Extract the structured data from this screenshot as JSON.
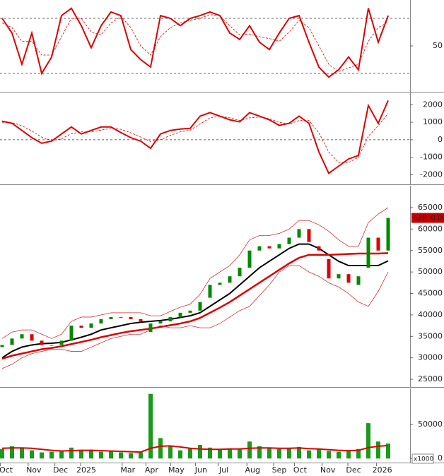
{
  "chart_data": [
    {
      "type": "line",
      "x": [
        0,
        1,
        2,
        3,
        4,
        5,
        6,
        7,
        8,
        9,
        10,
        11,
        12,
        13,
        14,
        15,
        16,
        17,
        18,
        19,
        20,
        21,
        22,
        23,
        24,
        25,
        26,
        27,
        28,
        29,
        30,
        31,
        32,
        33,
        34,
        35,
        36,
        37,
        38,
        39
      ],
      "ylim": [
        0,
        100
      ],
      "yticks": [
        50
      ],
      "levels": [
        20,
        80
      ],
      "series": [
        {
          "color": "#dd0000",
          "width": 2,
          "dash": false,
          "values": [
            80,
            64,
            30,
            64,
            20,
            38,
            83,
            91,
            72,
            48,
            72,
            87,
            83,
            46,
            35,
            27,
            83,
            80,
            72,
            80,
            83,
            87,
            83,
            64,
            57,
            72,
            54,
            46,
            64,
            80,
            83,
            54,
            27,
            16,
            24,
            38,
            24,
            91,
            54,
            83
          ]
        },
        {
          "color": "#dd0000",
          "width": 0.8,
          "dash": true,
          "values": [
            75,
            70,
            55,
            55,
            40,
            40,
            60,
            80,
            80,
            65,
            62,
            75,
            82,
            70,
            50,
            40,
            60,
            70,
            75,
            78,
            80,
            84,
            83,
            72,
            62,
            63,
            60,
            58,
            55,
            65,
            78,
            70,
            50,
            30,
            22,
            26,
            30,
            55,
            70,
            76
          ]
        }
      ]
    },
    {
      "type": "line",
      "x": [
        0,
        1,
        2,
        3,
        4,
        5,
        6,
        7,
        8,
        9,
        10,
        11,
        12,
        13,
        14,
        15,
        16,
        17,
        18,
        19,
        20,
        21,
        22,
        23,
        24,
        25,
        26,
        27,
        28,
        29,
        30,
        31,
        32,
        33,
        34,
        35,
        36,
        37,
        38,
        39
      ],
      "ylim": [
        -2550,
        2700
      ],
      "yticks": [
        2000,
        1000,
        0,
        -1000,
        -2000
      ],
      "levels": [
        0
      ],
      "series": [
        {
          "color": "#dd0000",
          "width": 2,
          "dash": false,
          "values": [
            1060,
            940,
            530,
            120,
            -200,
            -80,
            330,
            730,
            330,
            530,
            730,
            730,
            410,
            120,
            -80,
            -490,
            330,
            530,
            610,
            650,
            1350,
            1550,
            1350,
            1140,
            1020,
            1550,
            1350,
            1140,
            820,
            940,
            1350,
            940,
            -690,
            -1920,
            -1510,
            -1100,
            -900,
            1960,
            940,
            2240
          ]
        },
        {
          "color": "#dd0000",
          "width": 0.8,
          "dash": true,
          "values": [
            1000,
            980,
            800,
            500,
            150,
            -50,
            50,
            350,
            450,
            450,
            550,
            650,
            600,
            400,
            150,
            -100,
            0,
            250,
            450,
            550,
            900,
            1250,
            1350,
            1250,
            1100,
            1250,
            1300,
            1200,
            1000,
            900,
            1100,
            1100,
            400,
            -700,
            -1300,
            -1300,
            -1000,
            200,
            800,
            1500
          ]
        }
      ]
    },
    {
      "type": "candlestick",
      "x": [
        0,
        1,
        2,
        3,
        4,
        5,
        6,
        7,
        8,
        9,
        10,
        11,
        12,
        13,
        14,
        15,
        16,
        17,
        18,
        19,
        20,
        21,
        22,
        23,
        24,
        25,
        26,
        27,
        28,
        29,
        30,
        31,
        32,
        33,
        34,
        35,
        36,
        37,
        38,
        39
      ],
      "ylim": [
        23200,
        70100
      ],
      "yticks": [
        65000,
        60000,
        55000,
        50000,
        45000,
        40000,
        35000,
        30000,
        25000
      ],
      "up_color": "#008a00",
      "down_color": "#dd0000",
      "open": [
        32500,
        33000,
        34500,
        35500,
        34000,
        33000,
        33000,
        34000,
        37500,
        37000,
        38000,
        39000,
        39500,
        39500,
        39000,
        36000,
        38000,
        38500,
        39500,
        40500,
        41000,
        44000,
        47000,
        47500,
        49000,
        51000,
        55000,
        56000,
        55500,
        56500,
        58000,
        60000,
        56000,
        53000,
        48500,
        49500,
        47000,
        51000,
        58000,
        55000
      ],
      "close": [
        33000,
        34500,
        35500,
        34000,
        33000,
        33000,
        34000,
        37500,
        37000,
        38000,
        39000,
        39500,
        39500,
        39000,
        38500,
        38000,
        38500,
        39500,
        40500,
        41000,
        43000,
        47000,
        47500,
        49000,
        51000,
        55000,
        56000,
        55500,
        56500,
        58000,
        60000,
        57000,
        55000,
        48500,
        49500,
        47500,
        49000,
        58000,
        55000,
        62600
      ],
      "last_label": "62600.00",
      "series": [
        {
          "color": "#000000",
          "width": 2,
          "values": [
            30000,
            31500,
            32500,
            33000,
            33300,
            33400,
            33600,
            34200,
            34800,
            35500,
            36500,
            37000,
            37500,
            38000,
            38300,
            38500,
            38700,
            39000,
            39400,
            39800,
            40500,
            42000,
            43500,
            45000,
            47000,
            49000,
            51000,
            52500,
            54000,
            55500,
            56500,
            56500,
            55500,
            54000,
            52500,
            51500,
            51500,
            51500,
            51500,
            52600
          ]
        },
        {
          "color": "#dd0000",
          "width": 2.5,
          "values": [
            29800,
            30500,
            31000,
            31500,
            32000,
            32300,
            32700,
            33200,
            33700,
            34200,
            34800,
            35300,
            35800,
            36200,
            36500,
            36800,
            37200,
            37600,
            38000,
            38500,
            39300,
            40500,
            41700,
            43000,
            44500,
            46000,
            47500,
            49000,
            50500,
            52000,
            53300,
            54000,
            54000,
            54000,
            54100,
            54200,
            54300,
            54300,
            54300,
            54400
          ]
        },
        {
          "color": "#cc3333",
          "width": 0.8,
          "values": [
            34500,
            36000,
            36500,
            36500,
            35500,
            34500,
            35500,
            38500,
            39500,
            39500,
            40000,
            40500,
            40500,
            40500,
            40500,
            39800,
            39800,
            40800,
            41800,
            42500,
            44800,
            48500,
            50000,
            51500,
            54000,
            57500,
            58500,
            58500,
            59000,
            60000,
            62000,
            62000,
            61000,
            59500,
            57500,
            56000,
            56000,
            61500,
            63500,
            65000
          ]
        },
        {
          "color": "#cc3333",
          "width": 0.8,
          "values": [
            27500,
            28500,
            30000,
            31000,
            31500,
            32000,
            32000,
            31500,
            31500,
            32500,
            33500,
            34500,
            35000,
            35500,
            35500,
            36500,
            37500,
            37000,
            37000,
            37500,
            37000,
            37000,
            38000,
            39500,
            41000,
            42000,
            44500,
            47000,
            50000,
            51500,
            51500,
            50000,
            49000,
            47500,
            46500,
            45000,
            43000,
            42000,
            45500,
            50000
          ]
        }
      ]
    },
    {
      "type": "bar",
      "x": [
        0,
        1,
        2,
        3,
        4,
        5,
        6,
        7,
        8,
        9,
        10,
        11,
        12,
        13,
        14,
        15,
        16,
        17,
        18,
        19,
        20,
        21,
        22,
        23,
        24,
        25,
        26,
        27,
        28,
        29,
        30,
        31,
        32,
        33,
        34,
        35,
        36,
        37,
        38,
        39
      ],
      "ylim": [
        -6000,
        103000
      ],
      "yticks": [
        50000,
        0
      ],
      "unit_label": "x1000",
      "color": "#1a9a1a",
      "values": [
        14000,
        18000,
        15000,
        12000,
        9000,
        10000,
        11000,
        16000,
        12000,
        13000,
        10000,
        11000,
        9000,
        8000,
        9000,
        95000,
        30000,
        18000,
        12000,
        15000,
        20000,
        16000,
        14000,
        15000,
        14000,
        25000,
        18000,
        16000,
        14000,
        15000,
        17000,
        12000,
        14000,
        11000,
        10000,
        12000,
        14000,
        52000,
        25000,
        22000
      ],
      "series": [
        {
          "color": "#dd0000",
          "width": 2,
          "values": [
            15000,
            15500,
            15500,
            15000,
            13500,
            12000,
            11000,
            11500,
            12000,
            12000,
            11500,
            11000,
            10500,
            10000,
            9500,
            15000,
            18000,
            18500,
            17000,
            15000,
            14000,
            13500,
            13500,
            14000,
            14000,
            15000,
            15500,
            15500,
            15000,
            15000,
            15500,
            14500,
            14000,
            13000,
            12000,
            11500,
            12000,
            16000,
            18000,
            19000
          ]
        }
      ],
      "xticks": [
        {
          "value": 0.4,
          "label": "Oct"
        },
        {
          "value": 3.2,
          "label": "Nov"
        },
        {
          "value": 5.9,
          "label": "Dec"
        },
        {
          "value": 8.5,
          "label": "2025"
        },
        {
          "value": 12.7,
          "label": "Mar"
        },
        {
          "value": 15.1,
          "label": "Apr"
        },
        {
          "value": 17.6,
          "label": "May"
        },
        {
          "value": 20.1,
          "label": "Jun"
        },
        {
          "value": 22.4,
          "label": "Jul"
        },
        {
          "value": 25.3,
          "label": "Aug"
        },
        {
          "value": 28,
          "label": "Sep"
        },
        {
          "value": 30.1,
          "label": "Oct"
        },
        {
          "value": 32.9,
          "label": "Nov"
        },
        {
          "value": 35.5,
          "label": "Dec"
        },
        {
          "value": 38.4,
          "label": "2026"
        }
      ]
    }
  ]
}
